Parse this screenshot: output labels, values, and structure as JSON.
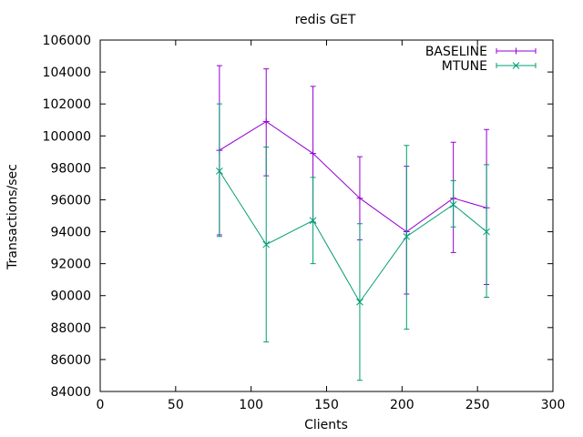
{
  "chart_data": {
    "type": "line",
    "title": "redis GET",
    "xlabel": "Clients",
    "ylabel": "Transactions/sec",
    "xlim": [
      0,
      300
    ],
    "ylim": [
      84000,
      106000
    ],
    "x_ticks": [
      "0",
      "50",
      "100",
      "150",
      "200",
      "250",
      "300"
    ],
    "y_ticks": [
      "84000",
      "86000",
      "88000",
      "90000",
      "92000",
      "94000",
      "96000",
      "98000",
      "100000",
      "102000",
      "104000",
      "106000"
    ],
    "grid": false,
    "legend_position": "top-right",
    "series": [
      {
        "name": "BASELINE",
        "color": "#9400d3",
        "marker": "plus",
        "points": [
          {
            "x": 79,
            "y": 99100,
            "low": 93800,
            "high": 104400
          },
          {
            "x": 110,
            "y": 100900,
            "low": 97500,
            "high": 104200
          },
          {
            "x": 141,
            "y": 98900,
            "low": 94600,
            "high": 103100
          },
          {
            "x": 172,
            "y": 96100,
            "low": 93500,
            "high": 98700
          },
          {
            "x": 203,
            "y": 94000,
            "low": 90100,
            "high": 98100
          },
          {
            "x": 234,
            "y": 96100,
            "low": 92700,
            "high": 99600
          },
          {
            "x": 256,
            "y": 95500,
            "low": 90700,
            "high": 100400
          }
        ]
      },
      {
        "name": "MTUNE",
        "color": "#009e73",
        "marker": "cross",
        "points": [
          {
            "x": 79,
            "y": 97800,
            "low": 93700,
            "high": 102000
          },
          {
            "x": 110,
            "y": 93200,
            "low": 87100,
            "high": 99300
          },
          {
            "x": 141,
            "y": 94700,
            "low": 92000,
            "high": 97400
          },
          {
            "x": 172,
            "y": 89600,
            "low": 84700,
            "high": 94500
          },
          {
            "x": 203,
            "y": 93700,
            "low": 87900,
            "high": 99400
          },
          {
            "x": 234,
            "y": 95700,
            "low": 94300,
            "high": 97200
          },
          {
            "x": 256,
            "y": 94000,
            "low": 89900,
            "high": 98200
          }
        ]
      }
    ]
  }
}
